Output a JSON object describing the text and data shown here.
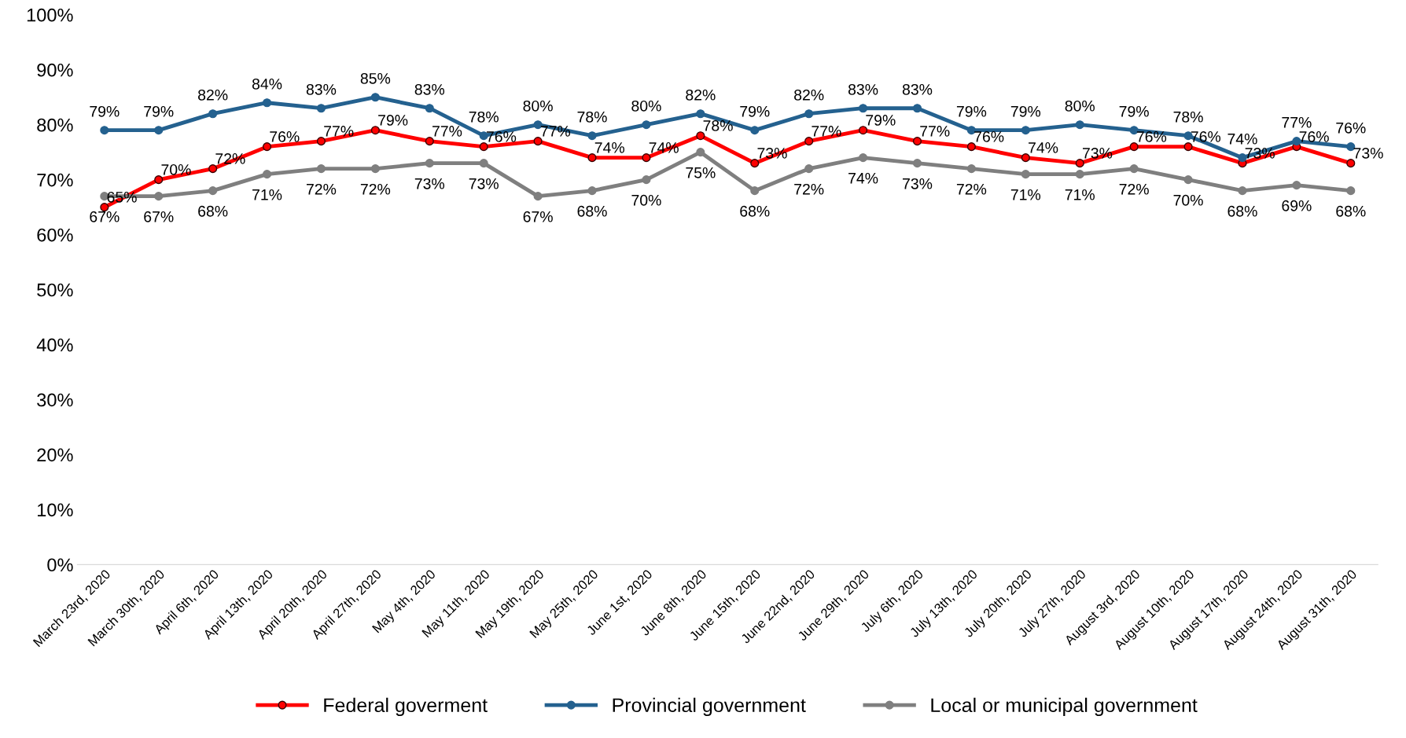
{
  "chart_data": {
    "type": "line",
    "categories": [
      "March 23rd, 2020",
      "March 30th, 2020",
      "April 6th, 2020",
      "April 13th, 2020",
      "April 20th, 2020",
      "April 27th, 2020",
      "May 4th, 2020",
      "May 11th, 2020",
      "May 19th, 2020",
      "May 25th, 2020",
      "June 1st, 2020",
      "June 8th, 2020",
      "June 15th, 2020",
      "June 22nd, 2020",
      "June 29th, 2020",
      "July 6th, 2020",
      "July 13th, 2020",
      "July 20th, 2020",
      "July 27th, 2020",
      "August 3rd, 2020",
      "August 10th, 2020",
      "August 17th, 2020",
      "August 24th, 2020",
      "August 31th, 2020"
    ],
    "series": [
      {
        "name": "Federal goverment",
        "color": "#ff0000",
        "values": [
          65,
          70,
          72,
          76,
          77,
          79,
          77,
          76,
          77,
          74,
          74,
          78,
          73,
          77,
          79,
          77,
          76,
          74,
          73,
          76,
          76,
          73,
          76,
          73
        ],
        "value_labels": [
          "65%",
          "70%",
          "72%",
          "76%",
          "77%",
          "79%",
          "77%",
          "76%",
          "77%",
          "74%",
          "74%",
          "78%",
          "73%",
          "77%",
          "79%",
          "77%",
          "76%",
          "74%",
          "73%",
          "76%",
          "76%",
          "73%",
          "76%",
          "73%"
        ]
      },
      {
        "name": "Provincial government",
        "color": "#24618f",
        "values": [
          79,
          79,
          82,
          84,
          83,
          85,
          83,
          78,
          80,
          78,
          80,
          82,
          79,
          82,
          83,
          83,
          79,
          79,
          80,
          79,
          78,
          74,
          77,
          76
        ],
        "value_labels": [
          "79%",
          "79%",
          "82%",
          "84%",
          "83%",
          "85%",
          "83%",
          "78%",
          "80%",
          "78%",
          "80%",
          "82%",
          "79%",
          "82%",
          "83%",
          "83%",
          "79%",
          "79%",
          "80%",
          "79%",
          "78%",
          "74%",
          "77%",
          "76%"
        ]
      },
      {
        "name": "Local or municipal government",
        "color": "#7f7f7f",
        "values": [
          67,
          67,
          68,
          71,
          72,
          72,
          73,
          73,
          67,
          68,
          70,
          75,
          68,
          72,
          74,
          73,
          72,
          71,
          71,
          72,
          70,
          68,
          69,
          68
        ],
        "value_labels": [
          "67%",
          "67%",
          "68%",
          "71%",
          "72%",
          "72%",
          "73%",
          "73%",
          "67%",
          "68%",
          "70%",
          "75%",
          "68%",
          "72%",
          "74%",
          "73%",
          "72%",
          "71%",
          "71%",
          "72%",
          "70%",
          "68%",
          "69%",
          "68%"
        ]
      }
    ],
    "ylim": [
      0,
      100
    ],
    "yticks": [
      {
        "value": 0,
        "label": "0%"
      },
      {
        "value": 10,
        "label": "10%"
      },
      {
        "value": 20,
        "label": "20%"
      },
      {
        "value": 30,
        "label": "30%"
      },
      {
        "value": 40,
        "label": "40%"
      },
      {
        "value": 50,
        "label": "50%"
      },
      {
        "value": 60,
        "label": "60%"
      },
      {
        "value": 70,
        "label": "70%"
      },
      {
        "value": 80,
        "label": "80%"
      },
      {
        "value": 90,
        "label": "90%"
      },
      {
        "value": 100,
        "label": "100%"
      }
    ],
    "legend": "bottom",
    "grid": false,
    "marker": "circle",
    "line_style": "solid"
  }
}
